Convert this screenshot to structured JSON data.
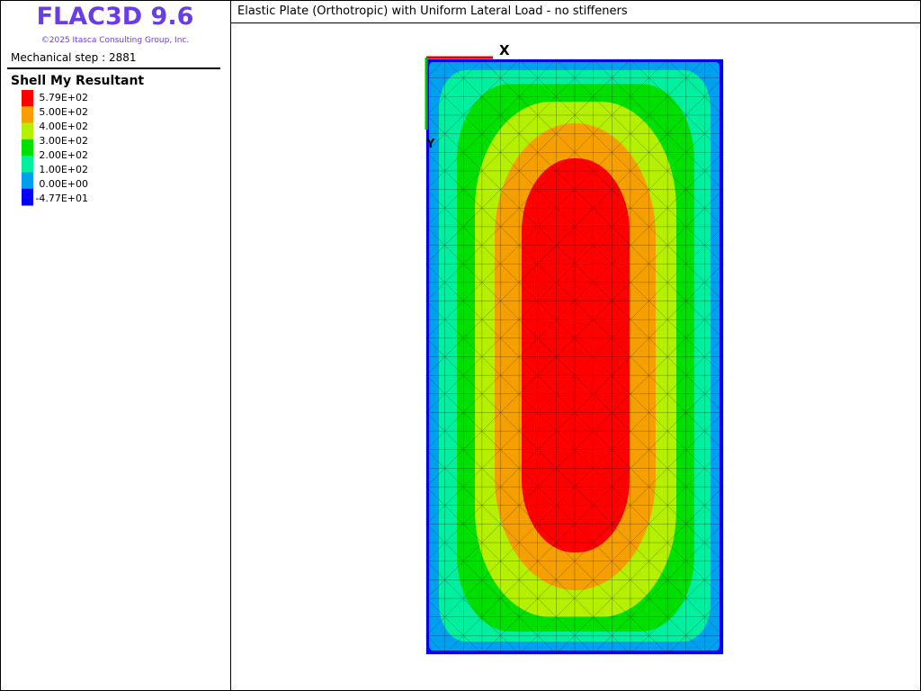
{
  "header": {
    "product": "FLAC3D 9.6",
    "copyright": "©2025 Itasca Consulting Group, Inc.",
    "step": "Mechanical step : 2881"
  },
  "legend": {
    "title": "Shell My Resultant",
    "labels": [
      "5.79E+02",
      "5.00E+02",
      "4.00E+02",
      "3.00E+02",
      "2.00E+02",
      "1.00E+02",
      "0.00E+00",
      "-4.77E+01"
    ],
    "colors": [
      "#ff0000",
      "#f5a000",
      "#b4f000",
      "#00e000",
      "#00f0a0",
      "#00a0f0",
      "#0000ff"
    ]
  },
  "plot": {
    "title": "Elastic Plate (Orthotropic) with Uniform Lateral Load - no stiffeners",
    "x_axis": "X",
    "y_axis": "Y"
  }
}
